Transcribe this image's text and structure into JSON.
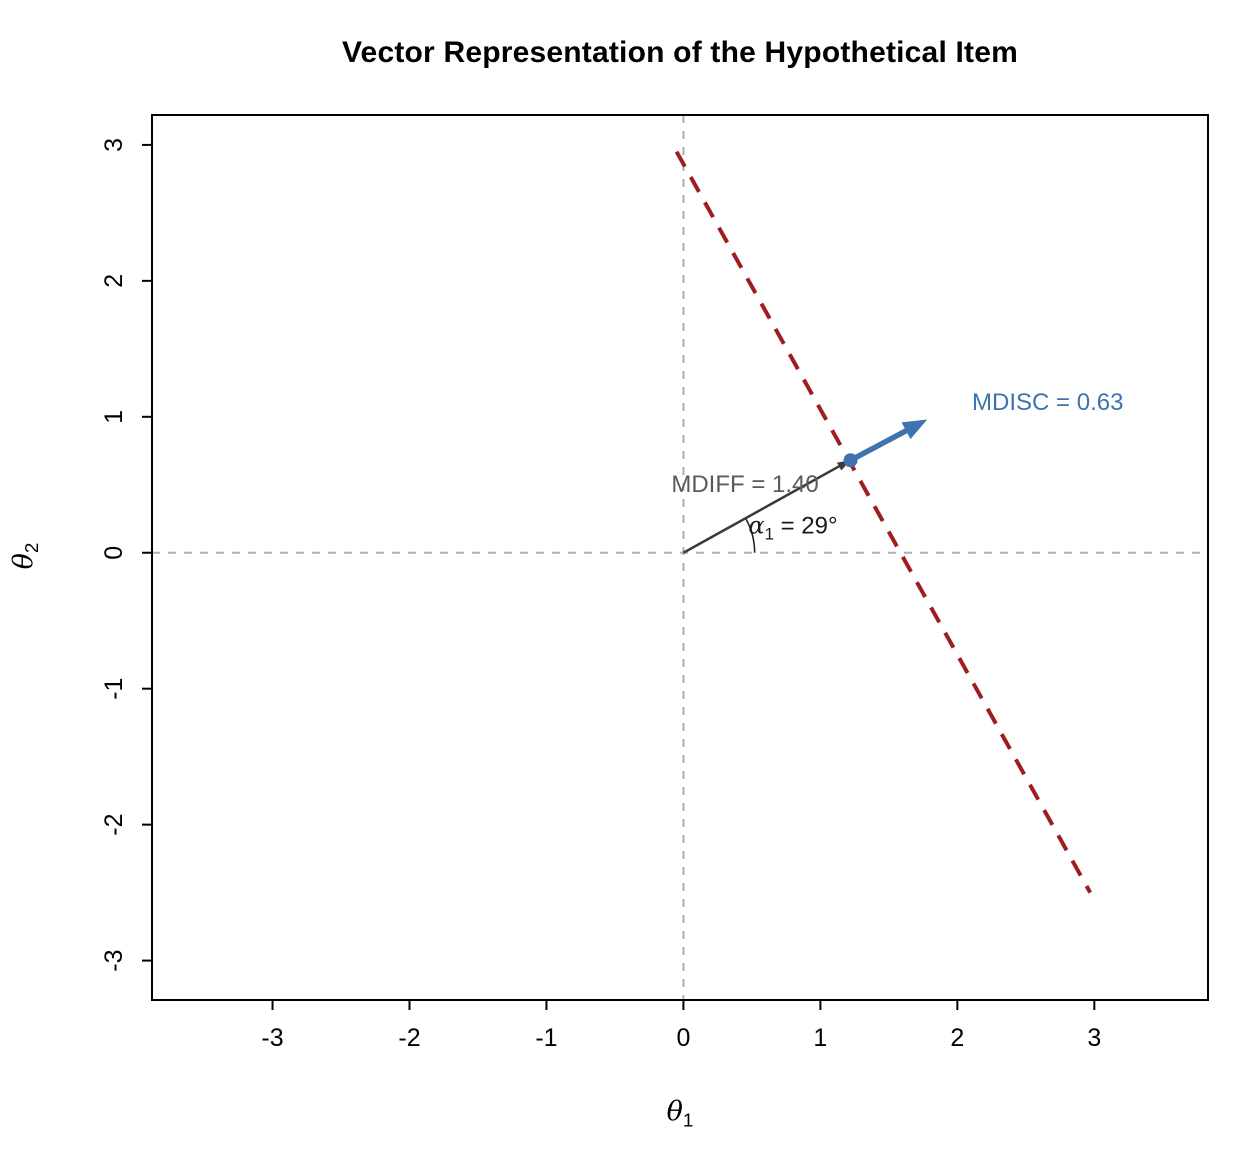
{
  "chart_data": {
    "type": "line",
    "title": "Vector Representation of the Hypothetical Item",
    "xlabel": {
      "base": "θ",
      "sub": "1"
    },
    "ylabel": {
      "base": "θ",
      "sub": "2"
    },
    "xlim": [
      -3.88,
      3.83
    ],
    "ylim": [
      -3.29,
      3.22
    ],
    "x_ticks": [
      -3,
      -2,
      -1,
      0,
      1,
      2,
      3
    ],
    "y_ticks": [
      -3,
      -2,
      -1,
      0,
      1,
      2,
      3
    ],
    "grid": false,
    "legend": "none",
    "reference_lines": {
      "vertical_x": 0,
      "horizontal_y": 0,
      "color": "#b0b0b0",
      "style": "dashed"
    },
    "item_direction_line": {
      "points": [
        [
          -0.05,
          2.95
        ],
        [
          2.97,
          -2.5
        ]
      ],
      "color": "#9f1d20",
      "style": "dashed",
      "width": 4
    },
    "item_vector": {
      "origin": [
        0,
        0
      ],
      "mdiff_point": [
        1.22,
        0.68
      ],
      "tip": [
        1.78,
        0.98
      ],
      "mdiff": 1.4,
      "mdisc": 0.63,
      "angle_deg": 29,
      "segment_color": "#3a3a3a",
      "arrow_color": "#3d74ad"
    },
    "angle_arc": {
      "radius": 0.52,
      "from_deg": 0,
      "to_deg": 29,
      "color": "#222222"
    },
    "annotations": [
      {
        "text": "MDISC = 0.63",
        "x": 2.66,
        "y": 1.1,
        "color": "#3d74ad"
      },
      {
        "text": "MDIFF = 1.40",
        "x": 0.45,
        "y": 0.5,
        "color": "#5a5a5a"
      },
      {
        "base": "α",
        "sub": "1",
        "rest": " = 29°",
        "x": 0.8,
        "y": 0.18,
        "color": "#1a1a1a"
      }
    ]
  }
}
